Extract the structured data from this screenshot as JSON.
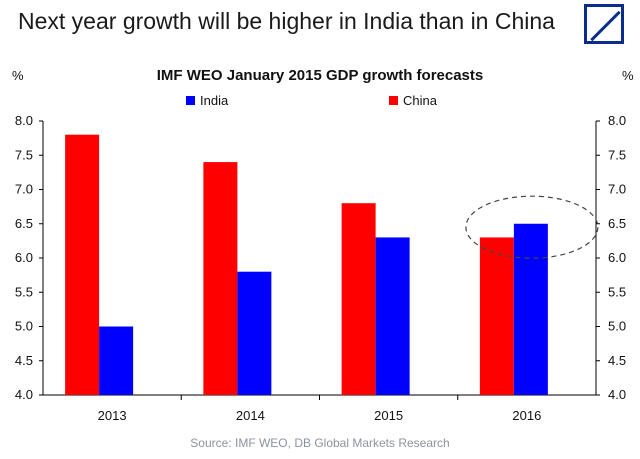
{
  "page": {
    "headline": "Next year growth will be higher in India than in China",
    "source": "Source: IMF WEO, DB Global Markets Research",
    "logo": "deutsche-bank-logo"
  },
  "chart_data": {
    "type": "bar",
    "title": "IMF WEO January 2015 GDP growth forecasts",
    "ylabel_left": "%",
    "ylabel_right": "%",
    "categories": [
      "2013",
      "2014",
      "2015",
      "2016"
    ],
    "ylim": [
      4.0,
      8.0
    ],
    "yticks": [
      "4.0",
      "4.5",
      "5.0",
      "5.5",
      "6.0",
      "6.5",
      "7.0",
      "7.5",
      "8.0"
    ],
    "series": [
      {
        "name": "China",
        "color": "#ff0000",
        "values": [
          7.8,
          7.4,
          6.8,
          6.3
        ]
      },
      {
        "name": "India",
        "color": "#0000ff",
        "values": [
          5.0,
          5.8,
          6.3,
          6.5
        ]
      }
    ],
    "legend_order": [
      "India",
      "China"
    ],
    "annotation": "dashed ellipse around 2016 bars"
  }
}
